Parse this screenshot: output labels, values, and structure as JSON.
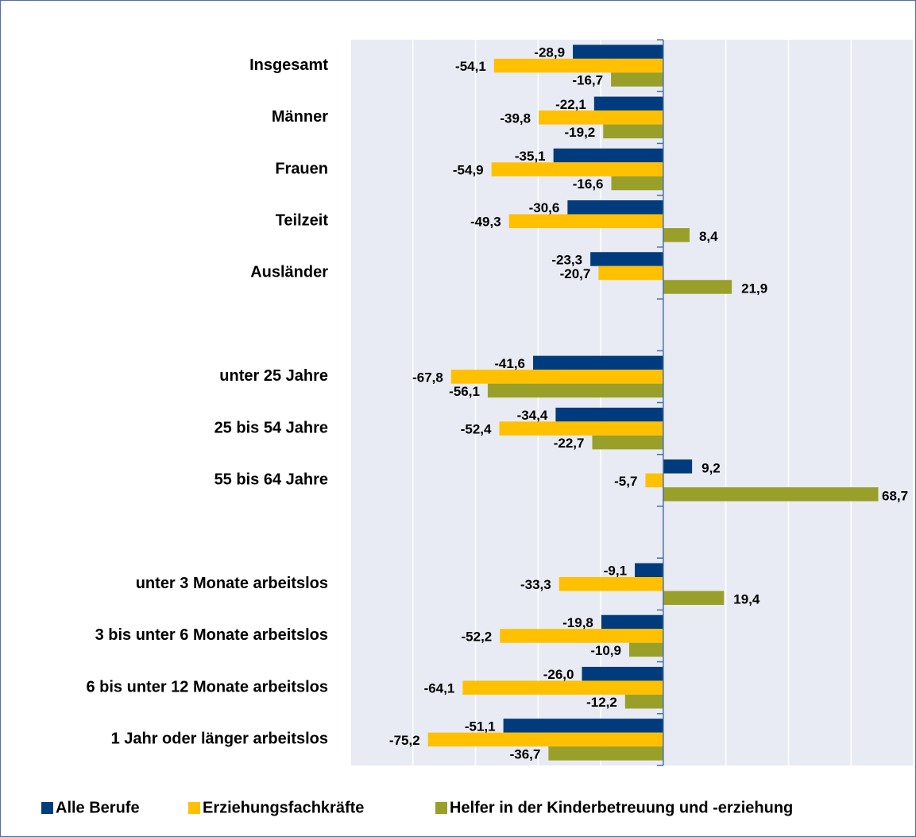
{
  "chart_data": {
    "type": "bar",
    "categories": [
      "Insgesamt",
      "Männer",
      "Frauen",
      "Teilzeit",
      "Ausländer",
      null,
      "unter 25 Jahre",
      "25 bis 54 Jahre",
      "55 bis 64 Jahre",
      null,
      "unter 3 Monate arbeitslos",
      "3 bis unter 6 Monate arbeitslos",
      "6 bis unter 12 Monate arbeitslos",
      "1 Jahr oder länger arbeitslos"
    ],
    "series": [
      {
        "name": "Alle Berufe",
        "color": "#003c7d",
        "values": [
          -28.9,
          -22.1,
          -35.1,
          -30.6,
          -23.3,
          null,
          -41.6,
          -34.4,
          9.2,
          null,
          -9.1,
          -19.8,
          -26.0,
          -51.1
        ],
        "value_labels": [
          "-28,9",
          "-22,1",
          "-35,1",
          "-30,6",
          "-23,3",
          null,
          "-41,6",
          "-34,4",
          "9,2",
          null,
          "-9,1",
          "-19,8",
          "-26,0",
          "-51,1"
        ]
      },
      {
        "name": "Erziehungsfachkräfte",
        "color": "#ffc000",
        "values": [
          -54.1,
          -39.8,
          -54.9,
          -49.3,
          -20.7,
          null,
          -67.8,
          -52.4,
          -5.7,
          null,
          -33.3,
          -52.2,
          -64.1,
          -75.2
        ],
        "value_labels": [
          "-54,1",
          "-39,8",
          "-54,9",
          "-49,3",
          "-20,7",
          null,
          "-67,8",
          "-52,4",
          "-5,7",
          null,
          "-33,3",
          "-52,2",
          "-64,1",
          "-75,2"
        ]
      },
      {
        "name": "Helfer in der Kinderbetreuung  und -erziehung",
        "color": "#99a02a",
        "values": [
          -16.7,
          -19.2,
          -16.6,
          8.4,
          21.9,
          null,
          -56.1,
          -22.7,
          68.7,
          null,
          19.4,
          -10.9,
          -12.2,
          -36.7
        ],
        "value_labels": [
          "-16,7",
          "-19,2",
          "-16,6",
          "8,4",
          "21,9",
          null,
          "-56,1",
          "-22,7",
          "68,7",
          null,
          "19,4",
          "-10,9",
          "-12,2",
          "-36,7"
        ]
      }
    ],
    "xlim": [
      -100,
      80
    ],
    "xticks": [
      -100,
      -80,
      -60,
      -40,
      -20,
      0,
      20,
      40,
      60,
      80
    ],
    "grid": true,
    "legend": "bottom"
  }
}
